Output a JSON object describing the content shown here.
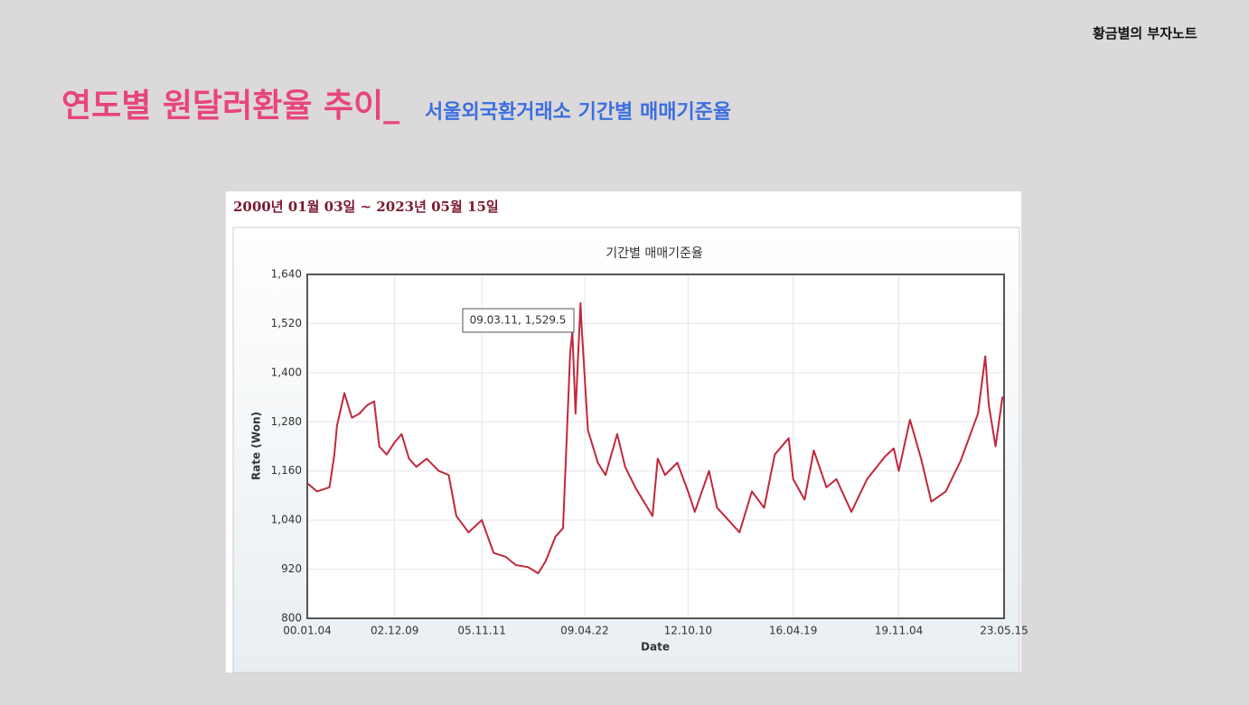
{
  "slide": {
    "brand": "황금별의 부자노트",
    "title": "연도별 원달러환율 추이_",
    "subtitle": "서울외국환거래소 기간별 매매기준율",
    "date_range": "2000년 01월 03일 ~ 2023년 05월 15일"
  },
  "chart_data": {
    "type": "line",
    "title": "기간별 매매기준율",
    "x_label": "Date",
    "y_label": "Rate (Won)",
    "annotation": "09.03.11, 1,529.5",
    "x": [
      "00.01.04",
      "00.05.01",
      "00.10.02",
      "00.12.01",
      "01.01.02",
      "01.04.02",
      "01.07.02",
      "01.10.04",
      "02.01.03",
      "02.04.01",
      "02.06.03",
      "02.09.02",
      "02.12.09",
      "03.03.03",
      "03.06.02",
      "03.09.01",
      "04.01.05",
      "04.06.01",
      "04.10.01",
      "05.01.03",
      "05.06.01",
      "05.11.11",
      "06.04.03",
      "06.09.01",
      "07.01.02",
      "07.06.01",
      "07.10.01",
      "08.01.02",
      "08.05.01",
      "08.08.01",
      "08.10.28",
      "08.11.24",
      "09.01.02",
      "09.03.02",
      "09.03.11",
      "09.06.01",
      "09.10.01",
      "10.01.04",
      "10.05.25",
      "10.09.01",
      "11.01.03",
      "11.08.01",
      "11.10.04",
      "12.01.02",
      "12.06.01",
      "12.10.10",
      "13.01.02",
      "13.06.24",
      "13.10.01",
      "14.01.02",
      "14.07.01",
      "14.12.01",
      "15.04.29",
      "15.09.07",
      "16.02.25",
      "16.04.19",
      "16.09.07",
      "16.12.28",
      "17.06.01",
      "17.10.01",
      "18.04.02",
      "18.10.11",
      "19.05.17",
      "19.09.03",
      "19.11.04",
      "20.03.19",
      "20.08.03",
      "20.12.07",
      "21.06.01",
      "21.12.01",
      "22.06.30",
      "22.09.28",
      "22.11.11",
      "23.02.02",
      "23.04.25",
      "23.05.15"
    ],
    "series": [
      {
        "name": "매매기준율",
        "color": "#c0283c",
        "values": [
          1130,
          1110,
          1120,
          1200,
          1270,
          1350,
          1290,
          1300,
          1320,
          1330,
          1220,
          1200,
          1230,
          1250,
          1190,
          1170,
          1190,
          1160,
          1150,
          1050,
          1010,
          1040,
          960,
          950,
          930,
          925,
          910,
          940,
          1000,
          1020,
          1450,
          1500,
          1300,
          1570,
          1529.5,
          1260,
          1180,
          1150,
          1250,
          1170,
          1120,
          1050,
          1190,
          1150,
          1180,
          1110,
          1060,
          1160,
          1070,
          1050,
          1010,
          1110,
          1070,
          1200,
          1240,
          1140,
          1090,
          1210,
          1120,
          1140,
          1060,
          1140,
          1195,
          1215,
          1160,
          1285,
          1190,
          1085,
          1110,
          1185,
          1300,
          1440,
          1320,
          1220,
          1340,
          1335
        ]
      }
    ],
    "xlim": [
      "00.01.04",
      "23.05.15"
    ],
    "xticks": [
      "00.01.04",
      "02.12.09",
      "05.11.11",
      "09.04.22",
      "12.10.10",
      "16.04.19",
      "19.11.04",
      "23.05.15"
    ],
    "ylim": [
      800,
      1640
    ],
    "yticks": [
      800,
      920,
      {
        "value": 1040,
        "label": "1,040"
      },
      {
        "value": 1160,
        "label": "1,160"
      },
      {
        "value": 1280,
        "label": "1,280"
      },
      {
        "value": 1400,
        "label": "1,400"
      },
      {
        "value": 1520,
        "label": "1,520"
      },
      {
        "value": 1640,
        "label": "1,640"
      }
    ],
    "grid": true
  }
}
